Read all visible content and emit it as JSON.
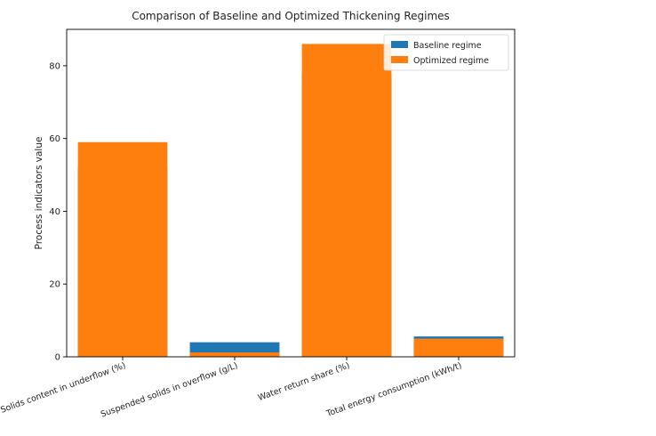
{
  "chart_data": {
    "type": "bar",
    "title": "Comparison of Baseline and Optimized Thickening Regimes",
    "xlabel": "",
    "ylabel": "Process indicators value",
    "ylim": [
      0,
      90
    ],
    "yticks": [
      0,
      20,
      40,
      60,
      80
    ],
    "categories": [
      "Solids content in underflow (%)",
      "Suspended solids in overflow (g/L)",
      "Water return share (%)",
      "Total energy consumption (kWh/t)"
    ],
    "series": [
      {
        "name": "Baseline regime",
        "color": "#1f77b4",
        "values": [
          52,
          4.0,
          78,
          5.6
        ]
      },
      {
        "name": "Optimized regime",
        "color": "#ff7f0e",
        "values": [
          59,
          1.2,
          86,
          5.0
        ]
      }
    ],
    "legend": "top-right",
    "grid": false,
    "overlay": true
  }
}
